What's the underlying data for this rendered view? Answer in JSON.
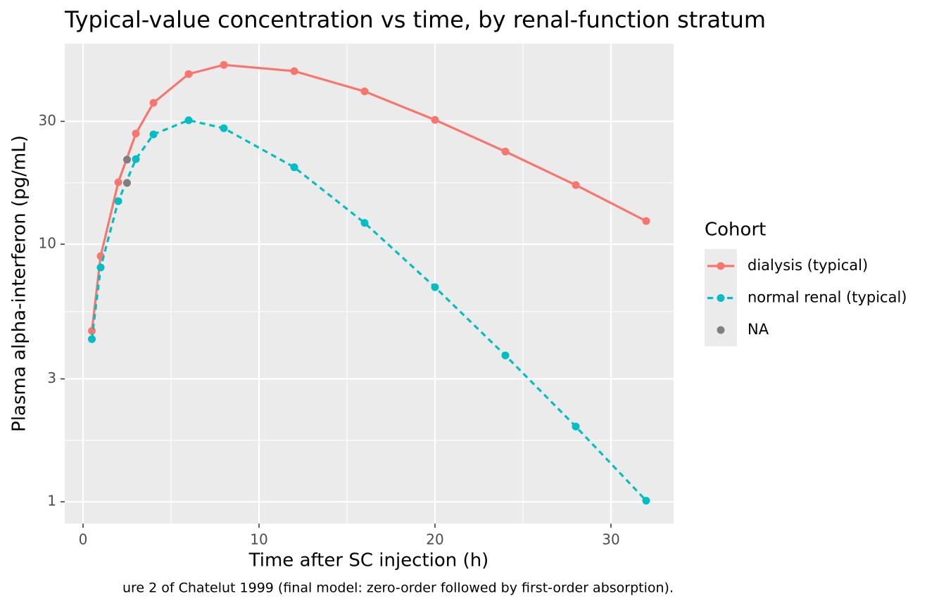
{
  "chart_data": {
    "type": "line",
    "title": "Typical-value concentration vs time, by renal-function stratum",
    "x_label": "Time after SC injection (h)",
    "y_label": "Plasma alpha-interferon (pg/mL)",
    "caption": "ure 2 of Chatelut 1999 (final model: zero-order followed by first-order absorption).",
    "legend_title": "Cohort",
    "legend_position": "right",
    "log_y": true,
    "grid": true,
    "xlim": [
      -1.04,
      33.56
    ],
    "xticks": [
      0,
      10,
      20,
      30
    ],
    "ylim": [
      0.823,
      60.1
    ],
    "yticks": [
      1,
      3,
      10,
      30
    ],
    "series": [
      {
        "name": "dialysis (typical)",
        "color": "#F8766D",
        "line_style": "solid",
        "x": [
          0.5,
          1,
          2,
          3,
          4,
          6,
          8,
          12,
          16,
          20,
          24,
          28,
          32
        ],
        "values": [
          4.61,
          8.99,
          17.4,
          26.9,
          35.4,
          45.8,
          49.7,
          47.0,
          39.2,
          30.4,
          22.9,
          16.97,
          12.3
        ]
      },
      {
        "name": "normal renal (typical)",
        "color": "#00BFC4",
        "line_style": "dashed",
        "x": [
          0.5,
          1,
          2,
          3,
          4,
          6,
          8,
          12,
          16,
          20,
          24,
          28,
          32
        ],
        "values": [
          4.28,
          8.12,
          14.7,
          21.4,
          26.7,
          30.3,
          28.2,
          19.9,
          12.1,
          6.81,
          3.7,
          1.96,
          1.01
        ]
      },
      {
        "name": "NA",
        "color": "#7F7F7F",
        "line_style": "none",
        "x": [
          2.5,
          2.5
        ],
        "values": [
          21.3,
          17.3
        ]
      }
    ]
  }
}
